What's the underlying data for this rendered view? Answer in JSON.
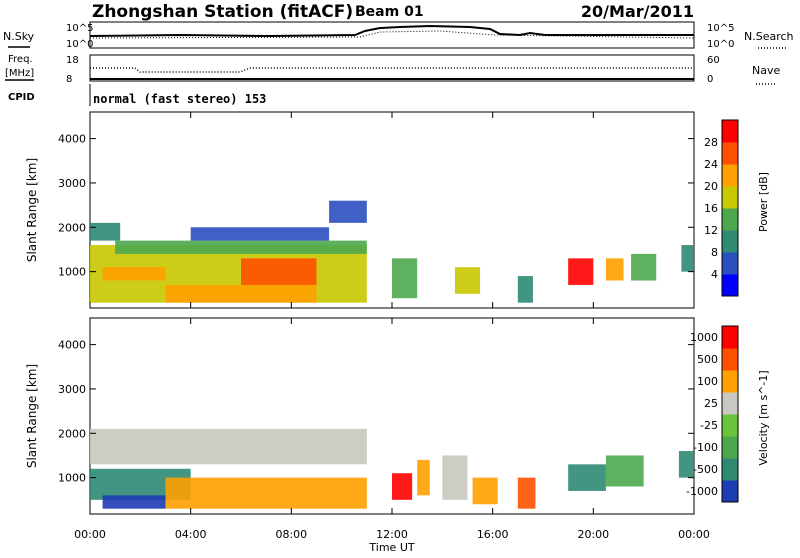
{
  "header": {
    "station": "Zhongshan Station (fitACF)",
    "beam": "Beam 01",
    "date": "20/Mar/2011",
    "mode": "normal (fast stereo) 153"
  },
  "aux": {
    "nsky_label": "N.Sky",
    "nsearch_label": "N.Search",
    "noise_ticks": [
      "10^5",
      "10^0"
    ],
    "freq_label": "Freq.",
    "freq_unit": "[MHz]",
    "freq_ticks": [
      "18",
      "8"
    ],
    "nave_ticks": [
      "60",
      "0"
    ],
    "nave_label": "Nave",
    "cpid_label": "CPID"
  },
  "chart_data": [
    {
      "type": "heatmap",
      "panel": "power",
      "xlabel": "Time UT",
      "ylabel": "Slant Range [km]",
      "x_ticks": [
        "00:00",
        "04:00",
        "08:00",
        "12:00",
        "16:00",
        "20:00",
        "00:00"
      ],
      "x_range_hours": [
        0,
        24
      ],
      "y_ticks": [
        1000,
        2000,
        3000,
        4000
      ],
      "y_range": [
        180,
        4600
      ],
      "colorbar": {
        "label": "Power [dB]",
        "ticks": [
          4,
          8,
          12,
          16,
          20,
          24,
          28
        ],
        "range": [
          0,
          32
        ],
        "colors": [
          "#0000ff",
          "#2c4fbf",
          "#2e8a73",
          "#4da84d",
          "#c8c800",
          "#ffa000",
          "#ff5000",
          "#ff0000"
        ]
      },
      "regions": [
        {
          "t0": 0.0,
          "t1": 11.0,
          "r0": 300,
          "r1": 1600,
          "level": 4
        },
        {
          "t0": 0.0,
          "t1": 1.2,
          "r0": 1700,
          "r1": 2100,
          "level": 2
        },
        {
          "t0": 1.0,
          "t1": 11.0,
          "r0": 1400,
          "r1": 1700,
          "level": 3
        },
        {
          "t0": 4.0,
          "t1": 9.5,
          "r0": 1700,
          "r1": 2000,
          "level": 1
        },
        {
          "t0": 3.0,
          "t1": 9.0,
          "r0": 300,
          "r1": 700,
          "level": 5
        },
        {
          "t0": 6.0,
          "t1": 9.0,
          "r0": 700,
          "r1": 1300,
          "level": 6
        },
        {
          "t0": 0.5,
          "t1": 3.0,
          "r0": 800,
          "r1": 1100,
          "level": 5
        },
        {
          "t0": 9.5,
          "t1": 11.0,
          "r0": 2100,
          "r1": 2600,
          "level": 1
        },
        {
          "t0": 12.0,
          "t1": 13.0,
          "r0": 400,
          "r1": 1300,
          "level": 3
        },
        {
          "t0": 14.5,
          "t1": 15.5,
          "r0": 500,
          "r1": 1100,
          "level": 4
        },
        {
          "t0": 17.0,
          "t1": 17.6,
          "r0": 300,
          "r1": 900,
          "level": 2
        },
        {
          "t0": 19.0,
          "t1": 20.0,
          "r0": 700,
          "r1": 1300,
          "level": 7
        },
        {
          "t0": 20.5,
          "t1": 21.2,
          "r0": 800,
          "r1": 1300,
          "level": 5
        },
        {
          "t0": 21.5,
          "t1": 22.5,
          "r0": 800,
          "r1": 1400,
          "level": 3
        },
        {
          "t0": 23.5,
          "t1": 24.0,
          "r0": 1000,
          "r1": 1600,
          "level": 2
        }
      ]
    },
    {
      "type": "heatmap",
      "panel": "velocity",
      "xlabel": "Time UT",
      "ylabel": "Slant Range [km]",
      "x_ticks": [
        "00:00",
        "04:00",
        "08:00",
        "12:00",
        "16:00",
        "20:00",
        "00:00"
      ],
      "x_range_hours": [
        0,
        24
      ],
      "y_ticks": [
        1000,
        2000,
        3000,
        4000
      ],
      "y_range": [
        180,
        4600
      ],
      "colorbar": {
        "label": "Velocity [m s^-1]",
        "ticks": [
          "1000",
          "500",
          "100",
          "25",
          "-25",
          "-100",
          "-500",
          "-1000"
        ],
        "colors": [
          "#1e3cb4",
          "#2e8a73",
          "#4da84d",
          "#69c43c",
          "#c8c8c0",
          "#ffa000",
          "#ff5000",
          "#ff0000"
        ]
      },
      "regions": [
        {
          "t0": 0.0,
          "t1": 11.0,
          "r0": 1300,
          "r1": 2100,
          "level": 4
        },
        {
          "t0": 0.0,
          "t1": 4.0,
          "r0": 500,
          "r1": 1200,
          "level": 1
        },
        {
          "t0": 3.0,
          "t1": 11.0,
          "r0": 300,
          "r1": 1000,
          "level": 5
        },
        {
          "t0": 0.5,
          "t1": 3.0,
          "r0": 300,
          "r1": 600,
          "level": 0
        },
        {
          "t0": 12.0,
          "t1": 12.8,
          "r0": 500,
          "r1": 1100,
          "level": 7
        },
        {
          "t0": 13.0,
          "t1": 13.5,
          "r0": 600,
          "r1": 1400,
          "level": 5
        },
        {
          "t0": 14.0,
          "t1": 15.0,
          "r0": 500,
          "r1": 1500,
          "level": 4
        },
        {
          "t0": 15.2,
          "t1": 16.2,
          "r0": 400,
          "r1": 1000,
          "level": 5
        },
        {
          "t0": 17.0,
          "t1": 17.7,
          "r0": 300,
          "r1": 1000,
          "level": 6
        },
        {
          "t0": 19.0,
          "t1": 20.5,
          "r0": 700,
          "r1": 1300,
          "level": 1
        },
        {
          "t0": 20.5,
          "t1": 22.0,
          "r0": 800,
          "r1": 1500,
          "level": 2
        },
        {
          "t0": 23.4,
          "t1": 24.0,
          "r0": 1000,
          "r1": 1600,
          "level": 1
        }
      ]
    }
  ]
}
